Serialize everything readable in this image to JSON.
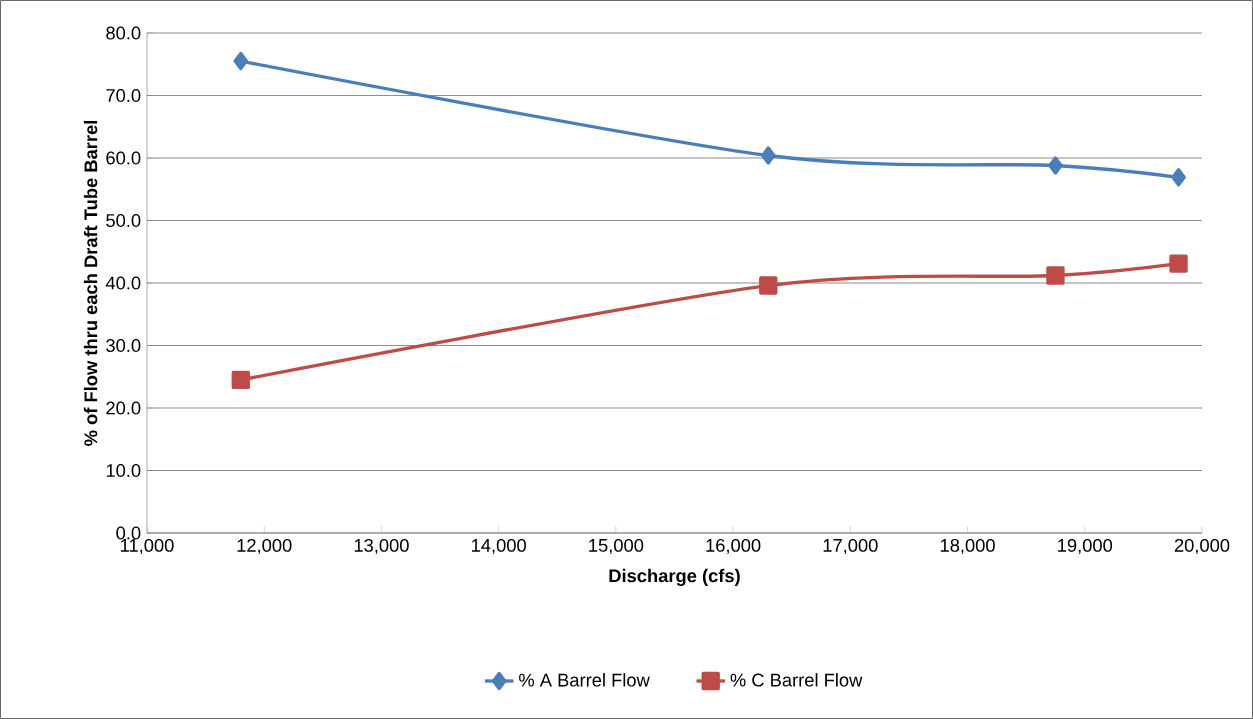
{
  "chart_data": {
    "type": "line",
    "xlabel": "Discharge (cfs)",
    "ylabel": "% of Flow thru each Draft Tube Barrel",
    "x": [
      11800,
      16300,
      18750,
      19800
    ],
    "series": [
      {
        "name": "% A Barrel Flow",
        "color": "#4a7ebb",
        "marker": "diamond",
        "values": [
          75.5,
          60.4,
          58.8,
          56.9
        ]
      },
      {
        "name": "% C Barrel Flow",
        "color": "#be4b48",
        "marker": "square",
        "values": [
          24.5,
          39.6,
          41.2,
          43.1
        ]
      }
    ],
    "xlim": [
      11000,
      20000
    ],
    "xticks": [
      {
        "value": 11000,
        "label": "11,000"
      },
      {
        "value": 12000,
        "label": "12,000"
      },
      {
        "value": 13000,
        "label": "13,000"
      },
      {
        "value": 14000,
        "label": "14,000"
      },
      {
        "value": 15000,
        "label": "15,000"
      },
      {
        "value": 16000,
        "label": "16,000"
      },
      {
        "value": 17000,
        "label": "17,000"
      },
      {
        "value": 18000,
        "label": "18,000"
      },
      {
        "value": 19000,
        "label": "19,000"
      },
      {
        "value": 20000,
        "label": "20,000"
      }
    ],
    "ylim": [
      0,
      80
    ],
    "yticks": [
      {
        "value": 0,
        "label": "0.0"
      },
      {
        "value": 10,
        "label": "10.0"
      },
      {
        "value": 20,
        "label": "20.0"
      },
      {
        "value": 30,
        "label": "30.0"
      },
      {
        "value": 40,
        "label": "40.0"
      },
      {
        "value": 50,
        "label": "50.0"
      },
      {
        "value": 60,
        "label": "60.0"
      },
      {
        "value": 70,
        "label": "70.0"
      },
      {
        "value": 80,
        "label": "80.0"
      }
    ],
    "grid": "y",
    "legend": "bottom",
    "line_style": "solid"
  }
}
